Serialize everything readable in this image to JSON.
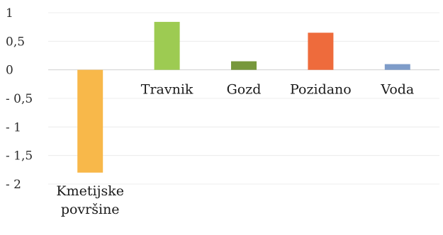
{
  "chart_data": {
    "type": "bar",
    "title": "",
    "xlabel": "",
    "ylabel": "",
    "ylim": [
      -2,
      1
    ],
    "yticks": [
      {
        "value": 1,
        "label": "1"
      },
      {
        "value": 0.5,
        "label": "0,5"
      },
      {
        "value": 0,
        "label": "0"
      },
      {
        "value": -0.5,
        "label": "- 0,5"
      },
      {
        "value": -1,
        "label": "- 1"
      },
      {
        "value": -1.5,
        "label": "- 1,5"
      },
      {
        "value": -2,
        "label": "- 2"
      }
    ],
    "grid": true,
    "legend": "none",
    "categories": [
      {
        "label_lines": [
          "Kmetijske",
          "površine"
        ],
        "value": -1.8,
        "color": "#F8B84A"
      },
      {
        "label_lines": [
          "Travnik"
        ],
        "value": 0.84,
        "color": "#9DCB52"
      },
      {
        "label_lines": [
          "Gozd"
        ],
        "value": 0.15,
        "color": "#77983C"
      },
      {
        "label_lines": [
          "Pozidano"
        ],
        "value": 0.65,
        "color": "#EE6B3C"
      },
      {
        "label_lines": [
          "Voda"
        ],
        "value": 0.1,
        "color": "#7E9CC9"
      }
    ]
  }
}
